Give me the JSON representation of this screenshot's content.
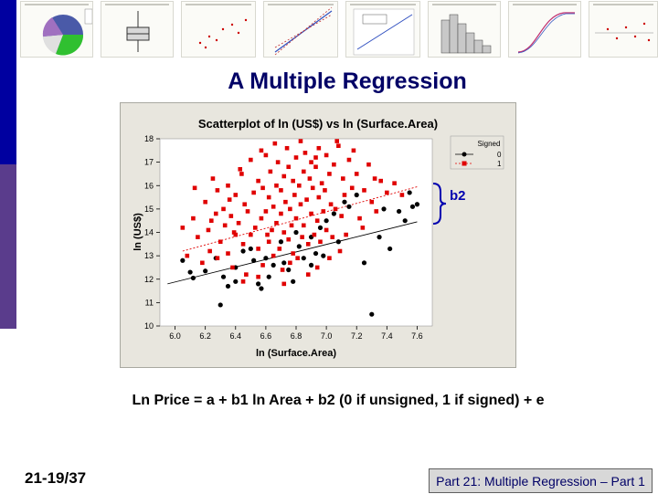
{
  "slide": {
    "title": "A Multiple Regression",
    "equation": "Ln Price = a + b1 ln Area + b2 (0 if unsigned, 1 if signed) + e",
    "slide_number": "21-19/37",
    "footer": "Part 21: Multiple Regression – Part 1",
    "annotation": "b2"
  },
  "colors": {
    "title": "#000066",
    "signed0": "#000000",
    "signed1": "#e00000",
    "brace": "#0000b0",
    "plot_bg": "#ffffff",
    "frame_bg": "#e8e6de"
  },
  "chart_data": {
    "type": "scatter",
    "title": "Scatterplot of ln (US$) vs ln (Surface.Area)",
    "xlabel": "ln (Surface.Area)",
    "ylabel": "ln (US$)",
    "xlim": [
      5.9,
      7.7
    ],
    "ylim": [
      10,
      18
    ],
    "xticks": [
      "6.0",
      "6.2",
      "6.4",
      "6.6",
      "6.8",
      "7.0",
      "7.2",
      "7.4",
      "7.6"
    ],
    "yticks": [
      "10",
      "11",
      "12",
      "13",
      "14",
      "15",
      "16",
      "17",
      "18"
    ],
    "grid": false,
    "legend": {
      "title": "Signed",
      "placement": "top-right",
      "entries": [
        "0",
        "1"
      ]
    },
    "fit_lines": [
      {
        "name": "0",
        "x": [
          5.95,
          7.6
        ],
        "y": [
          11.8,
          14.45
        ]
      },
      {
        "name": "1",
        "x": [
          6.05,
          7.6
        ],
        "y": [
          13.2,
          15.95
        ]
      }
    ],
    "series": [
      {
        "name": "0",
        "points": [
          [
            6.05,
            12.8
          ],
          [
            6.1,
            12.3
          ],
          [
            6.12,
            12.05
          ],
          [
            6.2,
            12.35
          ],
          [
            6.27,
            12.9
          ],
          [
            6.3,
            10.9
          ],
          [
            6.32,
            12.1
          ],
          [
            6.35,
            11.7
          ],
          [
            6.4,
            12.5
          ],
          [
            6.45,
            13.2
          ],
          [
            6.5,
            13.3
          ],
          [
            6.52,
            12.8
          ],
          [
            6.55,
            11.8
          ],
          [
            6.57,
            11.6
          ],
          [
            6.6,
            12.9
          ],
          [
            6.62,
            12.1
          ],
          [
            6.7,
            13.6
          ],
          [
            6.72,
            12.7
          ],
          [
            6.75,
            12.4
          ],
          [
            6.78,
            11.9
          ],
          [
            6.8,
            14.0
          ],
          [
            6.82,
            13.4
          ],
          [
            6.85,
            12.9
          ],
          [
            6.9,
            13.8
          ],
          [
            6.93,
            13.1
          ],
          [
            6.96,
            14.2
          ],
          [
            7.0,
            14.5
          ],
          [
            7.05,
            14.8
          ],
          [
            7.08,
            13.6
          ],
          [
            7.12,
            15.3
          ],
          [
            7.15,
            15.1
          ],
          [
            7.2,
            15.6
          ],
          [
            7.25,
            12.7
          ],
          [
            7.3,
            10.5
          ],
          [
            7.35,
            13.8
          ],
          [
            7.38,
            15.0
          ],
          [
            7.42,
            13.3
          ],
          [
            7.48,
            14.9
          ],
          [
            7.52,
            14.5
          ],
          [
            7.55,
            15.7
          ],
          [
            7.57,
            15.1
          ],
          [
            7.6,
            15.2
          ],
          [
            6.65,
            12.6
          ],
          [
            6.98,
            13.0
          ],
          [
            6.4,
            11.9
          ],
          [
            6.9,
            12.6
          ]
        ]
      },
      {
        "name": "1",
        "points": [
          [
            6.05,
            14.2
          ],
          [
            6.08,
            13.0
          ],
          [
            6.12,
            14.6
          ],
          [
            6.15,
            13.8
          ],
          [
            6.18,
            12.7
          ],
          [
            6.2,
            15.3
          ],
          [
            6.22,
            14.1
          ],
          [
            6.23,
            13.2
          ],
          [
            6.25,
            16.3
          ],
          [
            6.27,
            14.8
          ],
          [
            6.28,
            12.9
          ],
          [
            6.3,
            13.6
          ],
          [
            6.32,
            15.0
          ],
          [
            6.33,
            14.3
          ],
          [
            6.35,
            13.1
          ],
          [
            6.35,
            16.0
          ],
          [
            6.37,
            14.7
          ],
          [
            6.38,
            12.5
          ],
          [
            6.4,
            15.6
          ],
          [
            6.4,
            13.9
          ],
          [
            6.42,
            14.4
          ],
          [
            6.43,
            16.7
          ],
          [
            6.45,
            13.5
          ],
          [
            6.46,
            15.2
          ],
          [
            6.47,
            12.2
          ],
          [
            6.48,
            14.9
          ],
          [
            6.5,
            17.1
          ],
          [
            6.5,
            13.9
          ],
          [
            6.52,
            15.7
          ],
          [
            6.53,
            14.2
          ],
          [
            6.55,
            16.2
          ],
          [
            6.55,
            13.3
          ],
          [
            6.57,
            14.6
          ],
          [
            6.58,
            15.9
          ],
          [
            6.58,
            12.6
          ],
          [
            6.6,
            17.3
          ],
          [
            6.6,
            14.9
          ],
          [
            6.62,
            13.6
          ],
          [
            6.62,
            15.5
          ],
          [
            6.63,
            16.6
          ],
          [
            6.64,
            14.1
          ],
          [
            6.65,
            13.0
          ],
          [
            6.65,
            15.1
          ],
          [
            6.67,
            16.0
          ],
          [
            6.67,
            14.4
          ],
          [
            6.68,
            17.0
          ],
          [
            6.69,
            13.3
          ],
          [
            6.7,
            15.8
          ],
          [
            6.7,
            14.8
          ],
          [
            6.71,
            12.4
          ],
          [
            6.72,
            16.4
          ],
          [
            6.72,
            14.0
          ],
          [
            6.73,
            15.3
          ],
          [
            6.74,
            17.6
          ],
          [
            6.75,
            13.7
          ],
          [
            6.75,
            16.8
          ],
          [
            6.76,
            15.0
          ],
          [
            6.77,
            14.3
          ],
          [
            6.78,
            16.2
          ],
          [
            6.78,
            13.1
          ],
          [
            6.79,
            15.6
          ],
          [
            6.8,
            17.2
          ],
          [
            6.8,
            14.6
          ],
          [
            6.81,
            12.9
          ],
          [
            6.82,
            16.0
          ],
          [
            6.83,
            15.2
          ],
          [
            6.84,
            13.8
          ],
          [
            6.85,
            16.6
          ],
          [
            6.85,
            14.3
          ],
          [
            6.86,
            17.4
          ],
          [
            6.87,
            15.4
          ],
          [
            6.88,
            13.5
          ],
          [
            6.89,
            16.3
          ],
          [
            6.9,
            14.8
          ],
          [
            6.9,
            17.0
          ],
          [
            6.91,
            15.9
          ],
          [
            6.92,
            13.9
          ],
          [
            6.93,
            16.8
          ],
          [
            6.94,
            14.5
          ],
          [
            6.95,
            15.5
          ],
          [
            6.95,
            17.6
          ],
          [
            6.96,
            13.6
          ],
          [
            6.97,
            16.1
          ],
          [
            6.98,
            14.9
          ],
          [
            6.99,
            15.8
          ],
          [
            7.0,
            17.3
          ],
          [
            7.0,
            14.1
          ],
          [
            7.02,
            16.5
          ],
          [
            7.03,
            15.2
          ],
          [
            7.04,
            13.8
          ],
          [
            7.05,
            16.9
          ],
          [
            7.06,
            15.0
          ],
          [
            7.08,
            17.7
          ],
          [
            7.1,
            14.7
          ],
          [
            7.11,
            16.3
          ],
          [
            7.12,
            15.6
          ],
          [
            7.13,
            13.9
          ],
          [
            7.15,
            17.1
          ],
          [
            7.17,
            15.9
          ],
          [
            7.2,
            16.5
          ],
          [
            7.22,
            14.6
          ],
          [
            7.25,
            15.8
          ],
          [
            7.28,
            16.9
          ],
          [
            7.3,
            15.3
          ],
          [
            7.33,
            14.9
          ],
          [
            7.36,
            16.2
          ],
          [
            7.4,
            15.7
          ],
          [
            7.45,
            16.1
          ],
          [
            7.5,
            15.6
          ],
          [
            6.45,
            11.9
          ],
          [
            6.55,
            12.1
          ],
          [
            6.72,
            11.8
          ],
          [
            6.88,
            12.2
          ],
          [
            7.02,
            12.9
          ],
          [
            6.36,
            15.4
          ],
          [
            6.44,
            16.5
          ],
          [
            6.57,
            17.5
          ],
          [
            6.66,
            17.8
          ],
          [
            6.83,
            17.9
          ],
          [
            6.93,
            17.2
          ],
          [
            7.07,
            17.9
          ],
          [
            7.18,
            17.5
          ],
          [
            6.28,
            15.8
          ],
          [
            6.13,
            15.9
          ],
          [
            6.24,
            14.5
          ],
          [
            6.39,
            14.0
          ],
          [
            6.61,
            13.9
          ],
          [
            6.76,
            12.7
          ],
          [
            6.94,
            12.5
          ],
          [
            7.09,
            13.2
          ],
          [
            7.24,
            14.2
          ],
          [
            7.32,
            16.3
          ]
        ]
      }
    ]
  }
}
